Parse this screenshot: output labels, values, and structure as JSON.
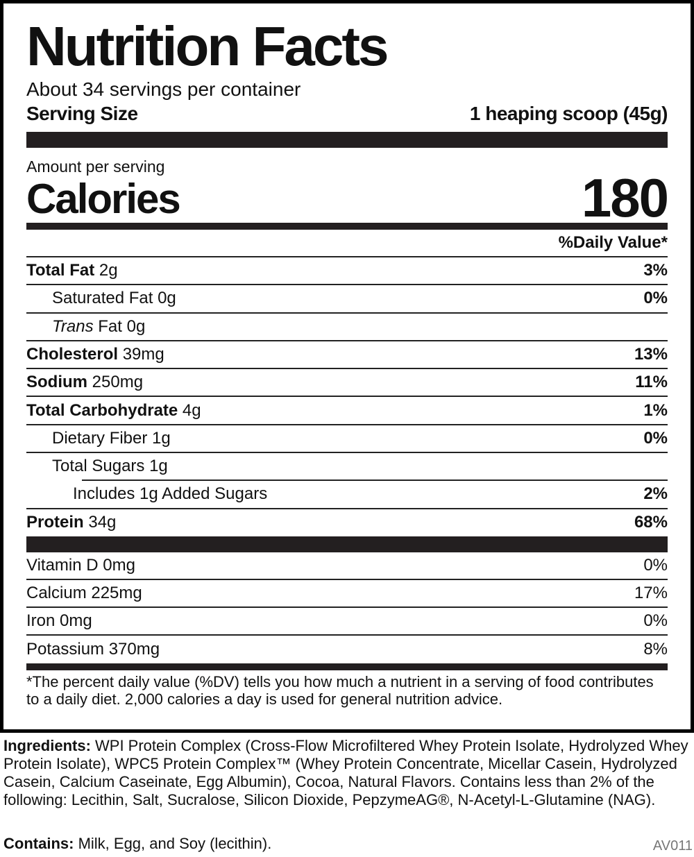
{
  "title": "Nutrition Facts",
  "servings": "About 34 servings per container",
  "serving_size_label": "Serving Size",
  "serving_size_value": "1 heaping scoop (45g)",
  "amount_per_serving": "Amount per serving",
  "calories_label": "Calories",
  "calories_value": "180",
  "dv_header": "%Daily Value*",
  "nutrients": [
    {
      "name": "Total Fat",
      "amount": " 2g",
      "dv": "3%"
    },
    {
      "name": "Saturated Fat 0g",
      "amount": "",
      "dv": "0%"
    },
    {
      "name": "Trans",
      "amount": " Fat 0g",
      "dv": ""
    },
    {
      "name": "Cholesterol",
      "amount": " 39mg",
      "dv": "13%"
    },
    {
      "name": "Sodium",
      "amount": " 250mg",
      "dv": "11%"
    },
    {
      "name": "Total Carbohydrate",
      "amount": " 4g",
      "dv": "1%"
    },
    {
      "name": "Dietary Fiber 1g",
      "amount": "",
      "dv": "0%"
    },
    {
      "name": "Total Sugars 1g",
      "amount": "",
      "dv": ""
    },
    {
      "name": "Includes 1g Added Sugars",
      "amount": "",
      "dv": "2%"
    },
    {
      "name": "Protein",
      "amount": " 34g",
      "dv": "68%"
    }
  ],
  "vitamins": [
    {
      "name": "Vitamin D 0mg",
      "dv": "0%"
    },
    {
      "name": "Calcium 225mg",
      "dv": "17%"
    },
    {
      "name": "Iron 0mg",
      "dv": "0%"
    },
    {
      "name": "Potassium 370mg",
      "dv": "8%"
    }
  ],
  "footnote": "*The percent daily value (%DV) tells you how much a nutrient in a serving of food contributes to a daily diet. 2,000 calories a day is used for general nutrition advice.",
  "ingredients_label": "Ingredients:",
  "ingredients": " WPI Protein Complex (Cross-Flow Microfiltered Whey Protein Isolate, Hydrolyzed Whey Protein Isolate), WPC5 Protein Complex™ (Whey Protein Concentrate, Micellar Casein, Hydrolyzed Casein, Calcium Caseinate, Egg Albumin), Cocoa, Natural Flavors. Contains less than 2% of the following: Lecithin, Salt, Sucralose, Silicon Dioxide, PepzymeAG®, N-Acetyl-L-Glutamine (NAG).",
  "contains_label": "Contains:",
  "contains": " Milk, Egg, and Soy (lecithin).",
  "code": "AV011"
}
